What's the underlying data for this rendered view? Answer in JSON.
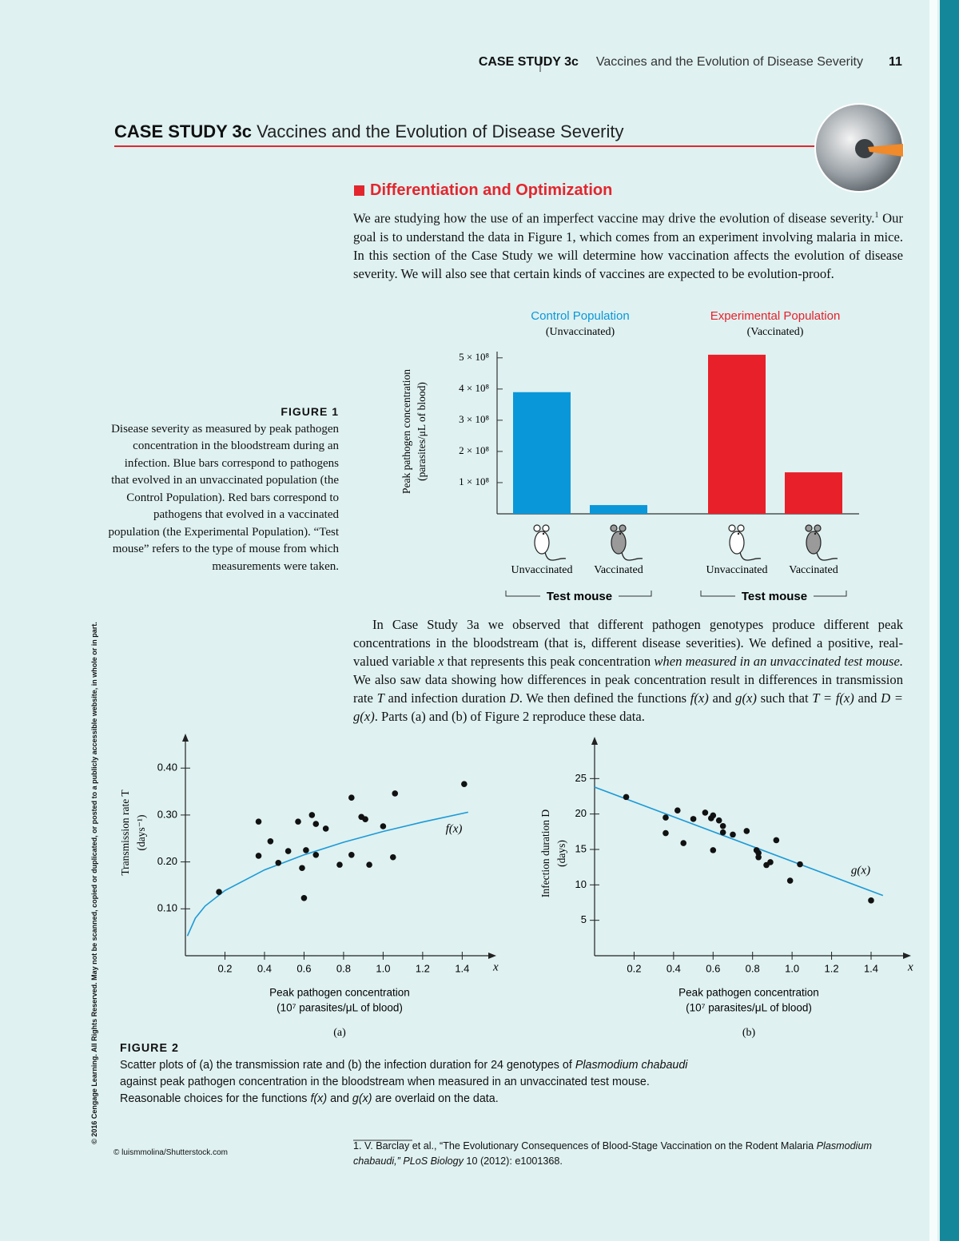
{
  "header": {
    "label": "CASE STUDY 3c",
    "title": "Vaccines and the Evolution of Disease Severity",
    "page": "11"
  },
  "banner": {
    "label": "CASE STUDY 3c",
    "title": "Vaccines and the Evolution of Disease Severity"
  },
  "section_title": "Differentiation and Optimization",
  "intro": [
    "We are studying how the use of an imperfect vaccine may drive the evolution of disease severity.",
    "1",
    " Our goal is to understand the data in Figure 1, which comes from an experiment involving malaria in mice. In this section of the Case Study we will determine how vaccination affects the evolution of disease severity. We will also see that certain kinds of vaccines are expected to be evolution-proof."
  ],
  "figure1": {
    "label": "FIGURE 1",
    "caption": "Disease severity as measured by peak pathogen concentration in the bloodstream during an infection. Blue bars correspond to pathogens that evolved in an unvaccinated population (the Control Population). Red bars correspond to pathogens that evolved in a vaccinated population (the Experimental Population). “Test mouse” refers to the type of mouse from which measurements were taken."
  },
  "body": [
    "In Case Study 3a we observed that different pathogen genotypes produce different peak concentrations in the bloodstream (that is, different disease severities). We defined a positive, real-valued variable ",
    "x",
    " that represents this peak concentration ",
    "when measured in an unvaccinated test mouse.",
    " We also saw data showing how differences in peak concentration result in differences in transmission rate ",
    "T",
    " and infection duration ",
    "D",
    ". We then defined the functions ",
    "f(x)",
    " and ",
    "g(x)",
    " such that ",
    "T = f(x)",
    " and ",
    "D = g(x)",
    ". Parts (a) and (b) of Figure 2 reproduce these data."
  ],
  "chart_data": [
    {
      "type": "bar",
      "ylabel": [
        "Peak pathogen concentration",
        "(parasites/μL of blood)"
      ],
      "ylim": [
        0,
        520000000
      ],
      "yticks": [
        {
          "value": 100000000,
          "label": "1 × 10⁸"
        },
        {
          "value": 200000000,
          "label": "2 × 10⁸"
        },
        {
          "value": 300000000,
          "label": "3 × 10⁸"
        },
        {
          "value": 400000000,
          "label": "4 × 10⁸"
        },
        {
          "value": 500000000,
          "label": "5 × 10⁸"
        }
      ],
      "groups": [
        {
          "name": "Control Population",
          "note": "(Unvaccinated)",
          "color": "#0a97d9",
          "categories": [
            "Unvaccinated",
            "Vaccinated"
          ],
          "values": [
            390000000,
            28000000
          ],
          "xlabel": "Test mouse"
        },
        {
          "name": "Experimental Population",
          "note": "(Vaccinated)",
          "color": "#e8202a",
          "categories": [
            "Unvaccinated",
            "Vaccinated"
          ],
          "values": [
            510000000,
            133000000
          ],
          "xlabel": "Test mouse"
        }
      ]
    },
    {
      "type": "scatter",
      "panel": "(a)",
      "axis_letter": "x",
      "ylabel": [
        "Transmission rate T",
        "(days⁻¹)"
      ],
      "xlabel": [
        "Peak pathogen concentration",
        "(10⁷ parasites/μL of blood)"
      ],
      "xlim": [
        0,
        1.54
      ],
      "ylim": [
        0,
        0.46
      ],
      "xticks": [
        0.2,
        0.4,
        0.6,
        0.8,
        {
          "value": 1,
          "label": "1.0"
        },
        1.2,
        1.4
      ],
      "yticks": [
        {
          "value": 0.1,
          "label": "0.10"
        },
        {
          "value": 0.2,
          "label": "0.20"
        },
        {
          "value": 0.3,
          "label": "0.30"
        },
        {
          "value": 0.4,
          "label": "0.40"
        }
      ],
      "color": "#111111",
      "x": [
        0.17,
        0.37,
        0.37,
        0.43,
        0.47,
        0.52,
        0.57,
        0.59,
        0.6,
        0.61,
        0.64,
        0.66,
        0.66,
        0.71,
        0.78,
        0.84,
        0.84,
        0.89,
        0.91,
        0.93,
        1.0,
        1.05,
        1.06,
        1.41
      ],
      "values": [
        0.136,
        0.286,
        0.213,
        0.244,
        0.198,
        0.223,
        0.286,
        0.187,
        0.123,
        0.225,
        0.3,
        0.281,
        0.215,
        0.271,
        0.194,
        0.215,
        0.337,
        0.296,
        0.291,
        0.194,
        0.276,
        0.21,
        0.346,
        0.366
      ],
      "curve": {
        "label": "f(x)",
        "color": "#1b9ad7",
        "x": [
          0.01,
          0.05,
          0.1,
          0.2,
          0.4,
          0.6,
          0.8,
          1.0,
          1.2,
          1.43
        ],
        "values": [
          0.042,
          0.08,
          0.106,
          0.139,
          0.183,
          0.215,
          0.242,
          0.265,
          0.285,
          0.306
        ]
      }
    },
    {
      "type": "scatter",
      "panel": "(b)",
      "axis_letter": "x",
      "ylabel": [
        "Infection duration D",
        "(days)"
      ],
      "xlabel": [
        "Peak pathogen concentration",
        "(10⁷ parasites/μL of blood)"
      ],
      "xlim": [
        0,
        1.57
      ],
      "ylim": [
        0,
        30
      ],
      "xticks": [
        0.2,
        0.4,
        0.6,
        0.8,
        {
          "value": 1,
          "label": "1.0"
        },
        1.2,
        1.4
      ],
      "yticks": [
        5,
        10,
        15,
        20,
        25
      ],
      "color": "#111111",
      "x": [
        0.16,
        0.36,
        0.36,
        0.42,
        0.45,
        0.5,
        0.56,
        0.59,
        0.6,
        0.6,
        0.63,
        0.65,
        0.65,
        0.7,
        0.77,
        0.83,
        0.83,
        0.82,
        0.87,
        0.89,
        0.92,
        0.99,
        1.04,
        1.4
      ],
      "values": [
        22.4,
        19.5,
        17.3,
        20.5,
        15.9,
        19.3,
        20.2,
        19.4,
        19.8,
        14.9,
        19.1,
        18.3,
        17.4,
        17.1,
        17.6,
        14.5,
        13.9,
        14.9,
        12.8,
        13.2,
        16.3,
        10.6,
        12.9,
        7.8
      ],
      "curve": {
        "label": "g(x)",
        "color": "#1b9ad7",
        "x": [
          0,
          1.46
        ],
        "values": [
          23.8,
          8.5
        ]
      }
    }
  ],
  "figure2": {
    "label": "FIGURE 2",
    "caption": [
      "Scatter plots of (a) the transmission rate and (b) the infection duration for 24 genotypes of ",
      "Plasmodium chabaudi",
      " against peak pathogen concentration in the bloodstream when measured in an unvaccinated test mouse. Reasonable choices for the functions ",
      "f(x)",
      " and ",
      "g(x)",
      " are overlaid on the data."
    ]
  },
  "footnote": [
    "1. V. Barclay et al., “The Evolutionary Consequences of Blood-Stage Vaccination on the Rodent Malaria ",
    "Plasmodium chabaudi,”",
    " ",
    "PLoS Biology",
    " 10 (2012): e1001368."
  ],
  "credit": "© luismmolina/Shutterstock.com",
  "copyright": "© 2016 Cengage Learning. All Rights Reserved. May not be scanned, copied or duplicated, or posted to a publicly accessible website, in whole or in part."
}
